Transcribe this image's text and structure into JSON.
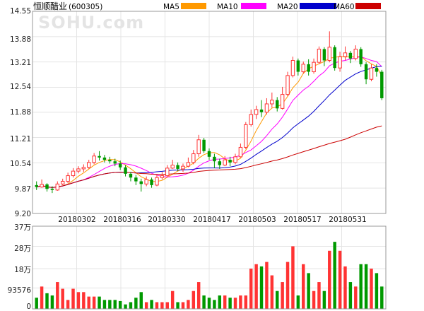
{
  "chart_data": {
    "type": "candlestick",
    "stock": {
      "name": "恒顺醋业",
      "code": "(600305)"
    },
    "watermark": "SOHU.com",
    "legend": [
      {
        "name": "MA5",
        "color": "#FF9900"
      },
      {
        "name": "MA10",
        "color": "#FF00FF"
      },
      {
        "name": "MA20",
        "color": "#0000CC"
      },
      {
        "name": "MA60",
        "color": "#CC0000"
      }
    ],
    "price_axis": {
      "ticks": [
        "14.55",
        "13.88",
        "13.21",
        "12.54",
        "11.88",
        "11.21",
        "10.54",
        "9.87",
        "9.20"
      ],
      "ylim": [
        9.2,
        14.55
      ]
    },
    "date_ticks": [
      "20180302",
      "20180316",
      "20180330",
      "20180417",
      "20180503",
      "20180517",
      "20180531"
    ],
    "volume_axis": {
      "ticks": [
        "37万",
        "28万",
        "18万",
        "93576",
        "0"
      ],
      "ylim": [
        0,
        370000
      ]
    },
    "up_color": "#FF3333",
    "down_color": "#009900",
    "candles": [
      [
        9.95,
        9.9,
        10.05,
        9.82
      ],
      [
        9.9,
        9.97,
        10.1,
        9.88
      ],
      [
        9.97,
        9.85,
        10.0,
        9.78
      ],
      [
        9.85,
        9.82,
        9.92,
        9.74
      ],
      [
        9.82,
        9.98,
        10.05,
        9.8
      ],
      [
        9.98,
        10.05,
        10.12,
        9.95
      ],
      [
        10.05,
        10.2,
        10.28,
        10.0
      ],
      [
        10.2,
        10.32,
        10.4,
        10.15
      ],
      [
        10.32,
        10.38,
        10.45,
        10.26
      ],
      [
        10.38,
        10.42,
        10.5,
        10.3
      ],
      [
        10.42,
        10.55,
        10.62,
        10.38
      ],
      [
        10.55,
        10.72,
        10.8,
        10.5
      ],
      [
        10.72,
        10.68,
        10.85,
        10.6
      ],
      [
        10.68,
        10.62,
        10.75,
        10.55
      ],
      [
        10.62,
        10.58,
        10.7,
        10.52
      ],
      [
        10.58,
        10.52,
        10.65,
        10.45
      ],
      [
        10.52,
        10.42,
        10.6,
        10.35
      ],
      [
        10.42,
        10.25,
        10.48,
        10.18
      ],
      [
        10.25,
        10.15,
        10.3,
        10.05
      ],
      [
        10.15,
        10.05,
        10.22,
        9.95
      ],
      [
        10.05,
        9.98,
        10.12,
        9.78
      ],
      [
        9.98,
        10.1,
        10.18,
        9.92
      ],
      [
        10.1,
        9.95,
        10.15,
        9.88
      ],
      [
        9.95,
        10.15,
        10.22,
        9.92
      ],
      [
        10.15,
        10.2,
        10.3,
        10.1
      ],
      [
        10.2,
        10.4,
        10.48,
        10.15
      ],
      [
        10.4,
        10.48,
        10.62,
        10.38
      ],
      [
        10.48,
        10.38,
        10.55,
        10.32
      ],
      [
        10.38,
        10.45,
        10.52,
        10.3
      ],
      [
        10.45,
        10.55,
        10.68,
        10.42
      ],
      [
        10.55,
        10.78,
        10.88,
        10.5
      ],
      [
        10.78,
        11.15,
        11.28,
        10.7
      ],
      [
        11.15,
        10.85,
        11.2,
        10.8
      ],
      [
        10.85,
        10.7,
        10.92,
        10.62
      ],
      [
        10.7,
        10.58,
        10.78,
        10.4
      ],
      [
        10.58,
        10.48,
        10.65,
        10.38
      ],
      [
        10.48,
        10.62,
        10.72,
        10.45
      ],
      [
        10.62,
        10.55,
        10.7,
        10.45
      ],
      [
        10.55,
        10.7,
        10.78,
        10.5
      ],
      [
        10.7,
        10.95,
        11.05,
        10.68
      ],
      [
        10.95,
        11.55,
        11.62,
        10.9
      ],
      [
        11.55,
        11.82,
        11.95,
        11.5
      ],
      [
        11.82,
        11.95,
        12.05,
        11.7
      ],
      [
        11.95,
        11.88,
        12.2,
        11.75
      ],
      [
        11.88,
        12.1,
        12.25,
        11.82
      ],
      [
        12.1,
        12.2,
        12.4,
        12.0
      ],
      [
        12.2,
        11.98,
        12.28,
        11.9
      ],
      [
        11.98,
        12.35,
        12.55,
        11.95
      ],
      [
        12.35,
        12.85,
        12.95,
        12.3
      ],
      [
        12.85,
        13.25,
        13.35,
        12.8
      ],
      [
        13.25,
        12.95,
        13.3,
        12.85
      ],
      [
        12.95,
        13.15,
        13.22,
        12.9
      ],
      [
        13.15,
        12.95,
        13.28,
        12.85
      ],
      [
        12.95,
        13.2,
        13.3,
        12.9
      ],
      [
        13.2,
        13.55,
        13.62,
        13.15
      ],
      [
        13.55,
        13.25,
        13.6,
        13.1
      ],
      [
        13.25,
        13.6,
        14.02,
        13.2
      ],
      [
        13.6,
        13.05,
        13.65,
        12.98
      ],
      [
        13.05,
        13.35,
        13.48,
        12.95
      ],
      [
        13.35,
        13.45,
        13.62,
        13.25
      ],
      [
        13.45,
        13.3,
        13.5,
        13.18
      ],
      [
        13.3,
        13.55,
        13.65,
        13.25
      ],
      [
        13.55,
        13.15,
        13.6,
        13.08
      ],
      [
        13.15,
        12.75,
        13.2,
        12.62
      ],
      [
        12.75,
        13.05,
        13.15,
        12.7
      ],
      [
        13.05,
        12.95,
        13.15,
        12.82
      ],
      [
        12.95,
        12.25,
        13.0,
        12.2
      ]
    ],
    "volumes": [
      50000,
      100000,
      70000,
      60000,
      120000,
      90000,
      40000,
      90000,
      75000,
      75000,
      55000,
      55000,
      55000,
      40000,
      40000,
      40000,
      35000,
      20000,
      30000,
      50000,
      75000,
      30000,
      40000,
      30000,
      30000,
      30000,
      80000,
      30000,
      30000,
      40000,
      80000,
      120000,
      60000,
      50000,
      40000,
      60000,
      60000,
      50000,
      50000,
      60000,
      60000,
      180000,
      200000,
      190000,
      210000,
      150000,
      80000,
      120000,
      210000,
      280000,
      60000,
      200000,
      160000,
      80000,
      120000,
      80000,
      260000,
      300000,
      260000,
      190000,
      120000,
      100000,
      200000,
      200000,
      180000,
      160000,
      100000
    ]
  }
}
